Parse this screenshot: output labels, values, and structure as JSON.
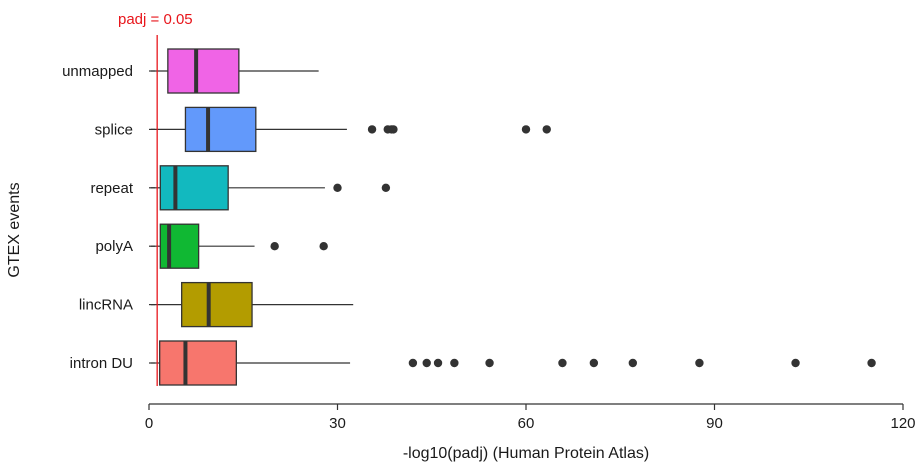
{
  "chart_data": {
    "type": "boxplot",
    "orientation": "horizontal",
    "xlabel": "-log10(padj) (Human Protein Atlas)",
    "ylabel": "GTEX events",
    "xlim": [
      0,
      120
    ],
    "xticks": [
      0,
      30,
      60,
      90,
      120
    ],
    "grid": false,
    "legend": "none",
    "reference_line": {
      "x": 1.3,
      "label": "padj = 0.05",
      "color": "#e8151b"
    },
    "categories": [
      "unmapped",
      "splice",
      "repeat",
      "polyA",
      "lincRNA",
      "intron DU"
    ],
    "series": [
      {
        "category": "unmapped",
        "color": "#f064e6",
        "whisker_low": 0.3,
        "q1": 3.0,
        "median": 7.5,
        "q3": 14.3,
        "whisker_high": 27.0,
        "outliers": []
      },
      {
        "category": "splice",
        "color": "#6299fb",
        "whisker_low": 0.3,
        "q1": 5.8,
        "median": 9.4,
        "q3": 17.0,
        "whisker_high": 31.5,
        "outliers": [
          35.5,
          38.0,
          38.6,
          38.9,
          60.0,
          63.3
        ]
      },
      {
        "category": "repeat",
        "color": "#12b9bf",
        "whisker_low": 0.3,
        "q1": 1.8,
        "median": 4.2,
        "q3": 12.6,
        "whisker_high": 28.0,
        "outliers": [
          30.0,
          37.7
        ]
      },
      {
        "category": "polyA",
        "color": "#10b833",
        "whisker_low": 0.3,
        "q1": 1.8,
        "median": 3.2,
        "q3": 7.9,
        "whisker_high": 16.8,
        "outliers": [
          20.0,
          27.8
        ]
      },
      {
        "category": "lincRNA",
        "color": "#b39c00",
        "whisker_low": 0.3,
        "q1": 5.2,
        "median": 9.5,
        "q3": 16.4,
        "whisker_high": 32.5,
        "outliers": []
      },
      {
        "category": "intron DU",
        "color": "#f7766d",
        "whisker_low": 0.3,
        "q1": 1.7,
        "median": 5.8,
        "q3": 13.9,
        "whisker_high": 32.0,
        "outliers": [
          42.0,
          44.2,
          46.0,
          48.6,
          54.2,
          65.8,
          70.8,
          77.0,
          87.6,
          102.9,
          115.0
        ]
      }
    ]
  }
}
